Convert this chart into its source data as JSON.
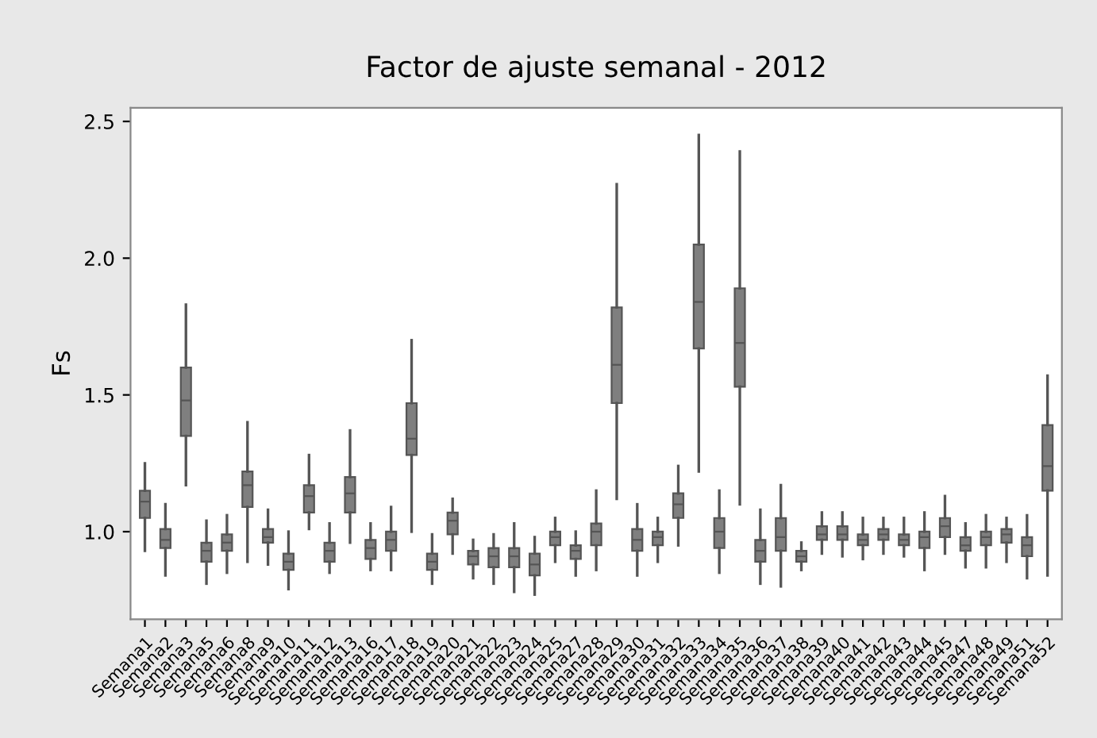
{
  "chart_data": {
    "type": "box",
    "title": "Factor de ajuste semanal - 2012",
    "ylabel": "Fs",
    "categories": [
      "Semana1",
      "Semana2",
      "Semana3",
      "Semana5",
      "Semana6",
      "Semana8",
      "Semana9",
      "Semana10",
      "Semana11",
      "Semana12",
      "Semana13",
      "Semana16",
      "Semana17",
      "Semana18",
      "Semana19",
      "Semana20",
      "Semana21",
      "Semana22",
      "Semana23",
      "Semana24",
      "Semana25",
      "Semana27",
      "Semana28",
      "Semana29",
      "Semana30",
      "Semana31",
      "Semana32",
      "Semana33",
      "Semana34",
      "Semana35",
      "Semana36",
      "Semana37",
      "Semana38",
      "Semana39",
      "Semana40",
      "Semana41",
      "Semana42",
      "Semana43",
      "Semana44",
      "Semana45",
      "Semana47",
      "Semana48",
      "Semana49",
      "Semana51",
      "Semana52"
    ],
    "color": "#7f7f7f",
    "boxes": [
      {
        "low": 0.93,
        "q1": 1.05,
        "median": 1.11,
        "q3": 1.15,
        "high": 1.25
      },
      {
        "low": 0.84,
        "q1": 0.94,
        "median": 0.97,
        "q3": 1.01,
        "high": 1.1
      },
      {
        "low": 1.17,
        "q1": 1.35,
        "median": 1.48,
        "q3": 1.6,
        "high": 1.83
      },
      {
        "low": 0.81,
        "q1": 0.89,
        "median": 0.93,
        "q3": 0.96,
        "high": 1.04
      },
      {
        "low": 0.85,
        "q1": 0.93,
        "median": 0.96,
        "q3": 0.99,
        "high": 1.06
      },
      {
        "low": 0.89,
        "q1": 1.09,
        "median": 1.17,
        "q3": 1.22,
        "high": 1.4
      },
      {
        "low": 0.88,
        "q1": 0.96,
        "median": 0.98,
        "q3": 1.01,
        "high": 1.08
      },
      {
        "low": 0.79,
        "q1": 0.86,
        "median": 0.89,
        "q3": 0.92,
        "high": 1.0
      },
      {
        "low": 1.01,
        "q1": 1.07,
        "median": 1.13,
        "q3": 1.17,
        "high": 1.28
      },
      {
        "low": 0.85,
        "q1": 0.89,
        "median": 0.93,
        "q3": 0.96,
        "high": 1.03
      },
      {
        "low": 0.96,
        "q1": 1.07,
        "median": 1.14,
        "q3": 1.2,
        "high": 1.37
      },
      {
        "low": 0.86,
        "q1": 0.9,
        "median": 0.94,
        "q3": 0.97,
        "high": 1.03
      },
      {
        "low": 0.86,
        "q1": 0.93,
        "median": 0.97,
        "q3": 1.0,
        "high": 1.09
      },
      {
        "low": 1.0,
        "q1": 1.28,
        "median": 1.34,
        "q3": 1.47,
        "high": 1.7
      },
      {
        "low": 0.81,
        "q1": 0.86,
        "median": 0.89,
        "q3": 0.92,
        "high": 0.99
      },
      {
        "low": 0.92,
        "q1": 0.99,
        "median": 1.04,
        "q3": 1.07,
        "high": 1.12
      },
      {
        "low": 0.83,
        "q1": 0.88,
        "median": 0.91,
        "q3": 0.93,
        "high": 0.97
      },
      {
        "low": 0.81,
        "q1": 0.87,
        "median": 0.91,
        "q3": 0.94,
        "high": 0.99
      },
      {
        "low": 0.78,
        "q1": 0.87,
        "median": 0.91,
        "q3": 0.94,
        "high": 1.03
      },
      {
        "low": 0.77,
        "q1": 0.84,
        "median": 0.88,
        "q3": 0.92,
        "high": 0.98
      },
      {
        "low": 0.89,
        "q1": 0.95,
        "median": 0.98,
        "q3": 1.0,
        "high": 1.05
      },
      {
        "low": 0.84,
        "q1": 0.9,
        "median": 0.93,
        "q3": 0.95,
        "high": 1.0
      },
      {
        "low": 0.86,
        "q1": 0.95,
        "median": 1.0,
        "q3": 1.03,
        "high": 1.15
      },
      {
        "low": 1.12,
        "q1": 1.47,
        "median": 1.61,
        "q3": 1.82,
        "high": 2.27
      },
      {
        "low": 0.84,
        "q1": 0.93,
        "median": 0.97,
        "q3": 1.01,
        "high": 1.1
      },
      {
        "low": 0.89,
        "q1": 0.95,
        "median": 0.98,
        "q3": 1.0,
        "high": 1.05
      },
      {
        "low": 0.95,
        "q1": 1.05,
        "median": 1.1,
        "q3": 1.14,
        "high": 1.24
      },
      {
        "low": 1.22,
        "q1": 1.67,
        "median": 1.84,
        "q3": 2.05,
        "high": 2.45
      },
      {
        "low": 0.85,
        "q1": 0.94,
        "median": 1.0,
        "q3": 1.05,
        "high": 1.15
      },
      {
        "low": 1.1,
        "q1": 1.53,
        "median": 1.69,
        "q3": 1.89,
        "high": 2.39
      },
      {
        "low": 0.81,
        "q1": 0.89,
        "median": 0.93,
        "q3": 0.97,
        "high": 1.08
      },
      {
        "low": 0.8,
        "q1": 0.93,
        "median": 0.98,
        "q3": 1.05,
        "high": 1.17
      },
      {
        "low": 0.86,
        "q1": 0.89,
        "median": 0.91,
        "q3": 0.93,
        "high": 0.96
      },
      {
        "low": 0.92,
        "q1": 0.97,
        "median": 0.99,
        "q3": 1.02,
        "high": 1.07
      },
      {
        "low": 0.91,
        "q1": 0.97,
        "median": 0.99,
        "q3": 1.02,
        "high": 1.07
      },
      {
        "low": 0.9,
        "q1": 0.95,
        "median": 0.97,
        "q3": 0.99,
        "high": 1.05
      },
      {
        "low": 0.92,
        "q1": 0.97,
        "median": 0.99,
        "q3": 1.01,
        "high": 1.05
      },
      {
        "low": 0.91,
        "q1": 0.95,
        "median": 0.97,
        "q3": 0.99,
        "high": 1.05
      },
      {
        "low": 0.86,
        "q1": 0.94,
        "median": 0.98,
        "q3": 1.0,
        "high": 1.07
      },
      {
        "low": 0.92,
        "q1": 0.98,
        "median": 1.02,
        "q3": 1.05,
        "high": 1.13
      },
      {
        "low": 0.87,
        "q1": 0.93,
        "median": 0.95,
        "q3": 0.98,
        "high": 1.03
      },
      {
        "low": 0.87,
        "q1": 0.95,
        "median": 0.98,
        "q3": 1.0,
        "high": 1.06
      },
      {
        "low": 0.89,
        "q1": 0.96,
        "median": 0.99,
        "q3": 1.01,
        "high": 1.05
      },
      {
        "low": 0.83,
        "q1": 0.91,
        "median": 0.95,
        "q3": 0.98,
        "high": 1.06
      },
      {
        "low": 0.84,
        "q1": 1.15,
        "median": 1.24,
        "q3": 1.39,
        "high": 1.57
      }
    ],
    "ylim": [
      0.68,
      2.55
    ],
    "yticks": [
      {
        "value": 1,
        "label": "1.0"
      },
      1.5,
      {
        "value": 2,
        "label": "2.0"
      },
      2.5
    ],
    "grid": false
  }
}
